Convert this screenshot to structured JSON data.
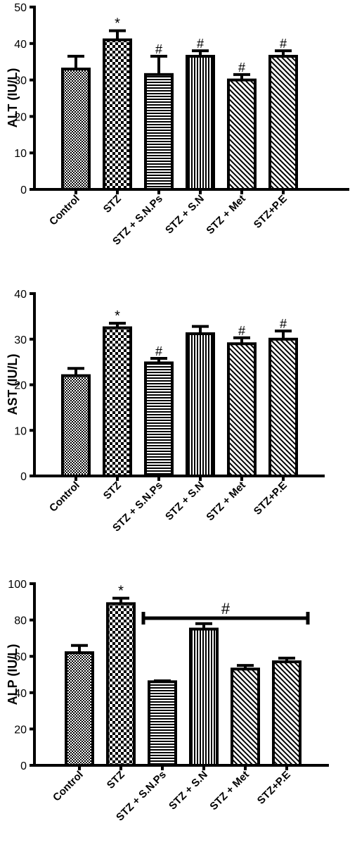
{
  "chart_data": [
    {
      "type": "bar",
      "ylabel": "ALT (IU/L)",
      "ylim": [
        0,
        50
      ],
      "yticks": [
        0,
        10,
        20,
        30,
        40,
        50
      ],
      "categories": [
        "Control",
        "STZ",
        "STZ + S.N.Ps",
        "STZ + S.N",
        "STZ + Met",
        "STZ+P.E"
      ],
      "values": [
        33,
        41,
        31.5,
        36.5,
        30,
        36.5
      ],
      "errors": [
        3.5,
        2.5,
        5,
        1.5,
        1.5,
        1.5
      ],
      "annotations": [
        "",
        "*",
        "#",
        "#",
        "#",
        "#"
      ],
      "patterns": [
        "checker-fine",
        "checker",
        "hlines",
        "vlines",
        "diag",
        "diag"
      ]
    },
    {
      "type": "bar",
      "ylabel": "AST (IU/L)",
      "ylim": [
        0,
        40
      ],
      "yticks": [
        0,
        10,
        20,
        30,
        40
      ],
      "categories": [
        "Control",
        "STZ",
        "STZ + S.N.Ps",
        "STZ + S.N",
        "STZ + Met",
        "STZ+P.E"
      ],
      "values": [
        22,
        32.5,
        24.8,
        31.2,
        29,
        30
      ],
      "errors": [
        1.6,
        1,
        1,
        1.6,
        1.3,
        1.8
      ],
      "annotations": [
        "",
        "*",
        "#",
        "",
        "#",
        "#"
      ],
      "patterns": [
        "checker-fine",
        "checker",
        "hlines",
        "vlines",
        "diag",
        "diag"
      ]
    },
    {
      "type": "bar",
      "ylabel": "ALP (IU/L)",
      "ylim": [
        0,
        100
      ],
      "yticks": [
        0,
        20,
        40,
        60,
        80,
        100
      ],
      "categories": [
        "Control",
        "STZ",
        "STZ + S.N.Ps",
        "STZ + S.N",
        "STZ + Met",
        "STZ+P.E"
      ],
      "values": [
        62,
        89,
        46,
        75,
        53,
        57
      ],
      "errors": [
        4,
        3,
        0.5,
        3,
        2,
        2
      ],
      "annotations": [
        "",
        "*",
        "",
        "",
        "",
        ""
      ],
      "patterns": [
        "checker-fine",
        "checker",
        "hlines",
        "vlines",
        "diag",
        "diag"
      ],
      "bracket": {
        "label": "#",
        "from_category": 2,
        "to_category": 5,
        "value": 81
      }
    }
  ]
}
